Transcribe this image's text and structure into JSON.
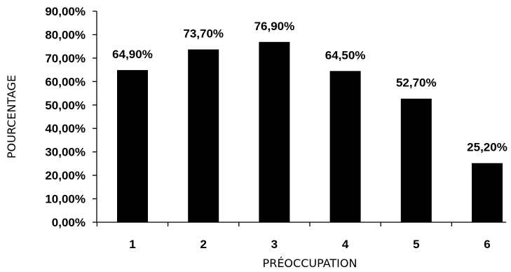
{
  "chart_data": {
    "type": "bar",
    "categories": [
      "1",
      "2",
      "3",
      "4",
      "5",
      "6"
    ],
    "values": [
      64.9,
      73.7,
      76.9,
      64.5,
      52.7,
      25.2
    ],
    "value_labels": [
      "64,90%",
      "73,70%",
      "76,90%",
      "64,50%",
      "52,70%",
      "25,20%"
    ],
    "title": "",
    "xlabel": "PRÉOCCUPATION",
    "ylabel": "POURCENTAGE",
    "ylim": [
      0,
      90
    ],
    "yticks": [
      0,
      10,
      20,
      30,
      40,
      50,
      60,
      70,
      80,
      90
    ],
    "ytick_labels": [
      "0,00%",
      "10,00%",
      "20,00%",
      "30,00%",
      "40,00%",
      "50,00%",
      "60,00%",
      "70,00%",
      "80,00%",
      "90,00%"
    ],
    "grid": false,
    "legend": "none",
    "bar_color": "#000000"
  }
}
